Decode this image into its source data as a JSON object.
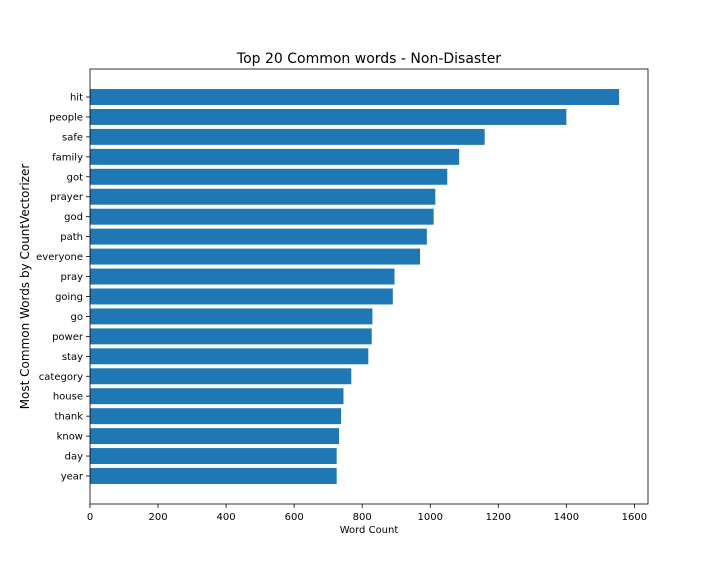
{
  "chart_data": {
    "type": "bar",
    "orientation": "horizontal",
    "title": "Top 20 Common words - Non-Disaster",
    "xlabel": "Word Count",
    "ylabel": "Most Common Words by CountVectorizer",
    "xlim": [
      0,
      1640
    ],
    "xticks": [
      0,
      200,
      400,
      600,
      800,
      1000,
      1200,
      1400,
      1600
    ],
    "grid": false,
    "bar_color": "#1f77b4",
    "categories": [
      "hit",
      "people",
      "safe",
      "family",
      "got",
      "prayer",
      "god",
      "path",
      "everyone",
      "pray",
      "going",
      "go",
      "power",
      "stay",
      "category",
      "house",
      "thank",
      "know",
      "day",
      "year"
    ],
    "values": [
      1555,
      1400,
      1160,
      1085,
      1050,
      1015,
      1010,
      990,
      970,
      895,
      890,
      830,
      828,
      818,
      768,
      745,
      738,
      732,
      725,
      725
    ]
  }
}
